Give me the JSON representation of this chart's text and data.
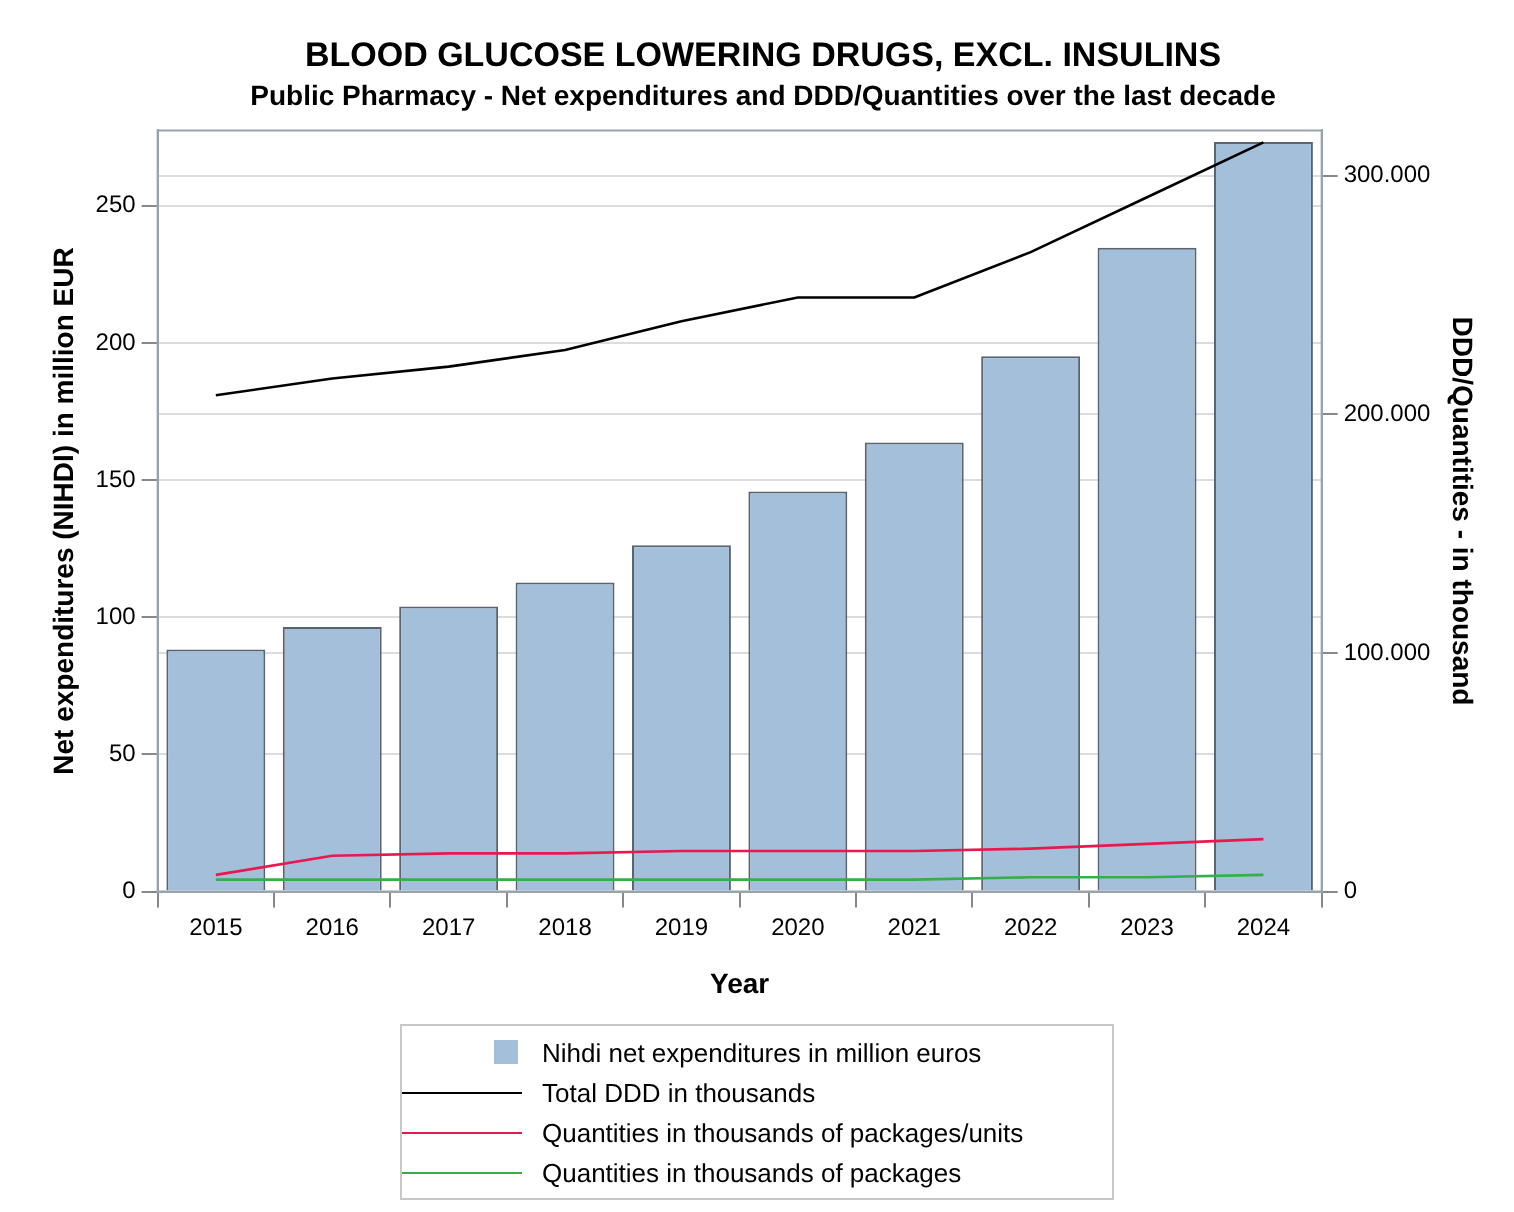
{
  "chart_data": {
    "type": "bar",
    "title": "BLOOD GLUCOSE LOWERING DRUGS, EXCL. INSULINS",
    "subtitle": "Public Pharmacy - Net expenditures and DDD/Quantities over the last decade",
    "xlabel": "Year",
    "ylabel": "Net expenditures (NIHDI) in million EUR",
    "y2label": "DDD/Quantities - in thousand",
    "categories": [
      "2015",
      "2016",
      "2017",
      "2018",
      "2019",
      "2020",
      "2021",
      "2022",
      "2023",
      "2024"
    ],
    "series": [
      {
        "name": "Nihdi net expenditures in million euros",
        "color": "#a3bfd9",
        "values": [
          88.3,
          96.5,
          103.9,
          112.7,
          126.3,
          145.9,
          163.7,
          195.2,
          234.7,
          273.3
        ]
      },
      {
        "name": "Total DDD in thousands",
        "type": "line",
        "axis": "y2",
        "color": "#000000",
        "values": [
          208000,
          215000,
          220000,
          227000,
          239000,
          249000,
          249000,
          268000,
          291000,
          314000
        ]
      },
      {
        "name": "Quantities in thousands of packages/units",
        "type": "line",
        "axis": "y2",
        "color": "#e8194f",
        "values": [
          7000,
          15000,
          16000,
          16000,
          17000,
          17000,
          17000,
          18000,
          20000,
          22000
        ]
      },
      {
        "name": "Quantities in thousands of packages",
        "type": "line",
        "axis": "y2",
        "color": "#33b04a",
        "values": [
          5000,
          5000,
          5000,
          5000,
          5000,
          5000,
          5000,
          6000,
          6000,
          7000
        ]
      }
    ],
    "ylim": [
      0,
      277.5
    ],
    "yticks": [
      0,
      50,
      100,
      150,
      200,
      250
    ],
    "y2lim": [
      0,
      319000
    ],
    "y2ticks": [
      0,
      {
        "value": 100000,
        "label": "100.000"
      },
      {
        "value": 200000,
        "label": "200.000"
      },
      {
        "value": 300000,
        "label": "300.000"
      }
    ],
    "grid": true,
    "legend": "bottom",
    "marker": "none",
    "line_style": "solid"
  }
}
